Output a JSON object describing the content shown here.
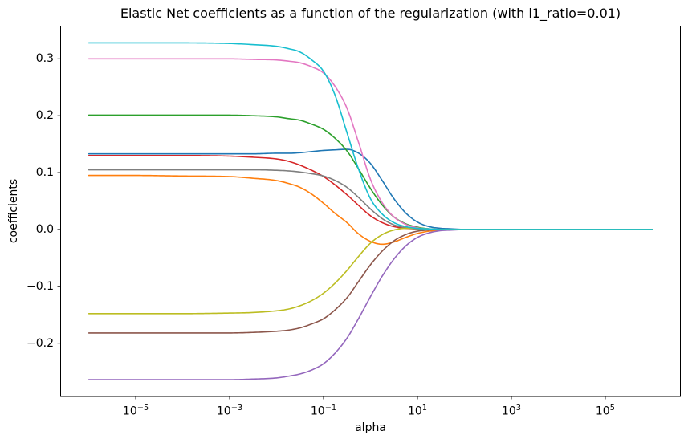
{
  "chart_data": {
    "type": "line",
    "title": "Elastic Net coefficients as a function of the regularization (with l1_ratio=0.01)",
    "xlabel": "alpha",
    "ylabel": "coefficients",
    "x_scale": "log10",
    "grid": false,
    "legend": "none",
    "xlim_log10": [
      -6.6,
      6.6
    ],
    "ylim": [
      -0.2936,
      0.3576
    ],
    "x_tick_exponents": [
      -5,
      -3,
      -1,
      1,
      3,
      5
    ],
    "y_ticks": [
      0.3,
      0.2,
      0.1,
      0.0,
      -0.1,
      -0.2
    ],
    "log10_alpha": [
      -6,
      -5,
      -4,
      -3,
      -2.5,
      -2,
      -1.75,
      -1.5,
      -1.25,
      -1,
      -0.75,
      -0.5,
      -0.25,
      0,
      0.25,
      0.5,
      0.75,
      1,
      1.25,
      1.5,
      1.75,
      2,
      3,
      4,
      5,
      6
    ],
    "series": [
      {
        "name": "blue",
        "color": "#1f77b4",
        "values": [
          0.133,
          0.133,
          0.133,
          0.133,
          0.133,
          0.134,
          0.134,
          0.135,
          0.137,
          0.139,
          0.14,
          0.141,
          0.134,
          0.116,
          0.086,
          0.054,
          0.029,
          0.013,
          0.005,
          0.002,
          0.001,
          0,
          0,
          0,
          0,
          0
        ]
      },
      {
        "name": "orange",
        "color": "#ff7f0e",
        "values": [
          0.095,
          0.095,
          0.094,
          0.093,
          0.09,
          0.086,
          0.081,
          0.074,
          0.062,
          0.046,
          0.028,
          0.012,
          -0.008,
          -0.021,
          -0.026,
          -0.022,
          -0.014,
          -0.007,
          -0.003,
          -0.001,
          0,
          0,
          0,
          0,
          0,
          0
        ]
      },
      {
        "name": "green",
        "color": "#2ca02c",
        "values": [
          0.201,
          0.201,
          0.201,
          0.201,
          0.2,
          0.198,
          0.195,
          0.192,
          0.185,
          0.176,
          0.16,
          0.138,
          0.106,
          0.072,
          0.043,
          0.022,
          0.01,
          0.004,
          0.001,
          0,
          0,
          0,
          0,
          0,
          0,
          0
        ]
      },
      {
        "name": "red",
        "color": "#d62728",
        "values": [
          0.13,
          0.13,
          0.13,
          0.129,
          0.127,
          0.124,
          0.12,
          0.113,
          0.104,
          0.093,
          0.078,
          0.061,
          0.042,
          0.024,
          0.012,
          0.005,
          0.002,
          0.001,
          0,
          0,
          0,
          0,
          0,
          0,
          0,
          0
        ]
      },
      {
        "name": "purple",
        "color": "#9467bd",
        "values": [
          -0.264,
          -0.264,
          -0.264,
          -0.264,
          -0.263,
          -0.261,
          -0.258,
          -0.254,
          -0.247,
          -0.236,
          -0.217,
          -0.191,
          -0.156,
          -0.118,
          -0.082,
          -0.052,
          -0.029,
          -0.014,
          -0.006,
          -0.002,
          -0.001,
          0,
          0,
          0,
          0,
          0
        ]
      },
      {
        "name": "brown",
        "color": "#8c564b",
        "values": [
          -0.182,
          -0.182,
          -0.182,
          -0.182,
          -0.181,
          -0.179,
          -0.177,
          -0.173,
          -0.166,
          -0.157,
          -0.141,
          -0.12,
          -0.091,
          -0.062,
          -0.038,
          -0.02,
          -0.009,
          -0.003,
          -0.001,
          0,
          0,
          0,
          0,
          0,
          0,
          0
        ]
      },
      {
        "name": "pink",
        "color": "#e377c2",
        "values": [
          0.3,
          0.3,
          0.3,
          0.3,
          0.299,
          0.298,
          0.296,
          0.293,
          0.286,
          0.275,
          0.251,
          0.213,
          0.152,
          0.088,
          0.047,
          0.022,
          0.009,
          0.003,
          0.001,
          0,
          0,
          0,
          0,
          0,
          0,
          0
        ]
      },
      {
        "name": "gray",
        "color": "#7f7f7f",
        "values": [
          0.105,
          0.105,
          0.105,
          0.105,
          0.105,
          0.104,
          0.103,
          0.101,
          0.098,
          0.094,
          0.086,
          0.074,
          0.056,
          0.036,
          0.019,
          0.008,
          0.003,
          0.001,
          0,
          0,
          0,
          0,
          0,
          0,
          0,
          0
        ]
      },
      {
        "name": "olive",
        "color": "#bcbd22",
        "values": [
          -0.148,
          -0.148,
          -0.148,
          -0.147,
          -0.146,
          -0.143,
          -0.14,
          -0.134,
          -0.125,
          -0.112,
          -0.094,
          -0.072,
          -0.047,
          -0.024,
          -0.009,
          -0.001,
          0.002,
          0.002,
          0.001,
          0,
          0,
          0,
          0,
          0,
          0,
          0
        ]
      },
      {
        "name": "cyan",
        "color": "#17becf",
        "values": [
          0.328,
          0.328,
          0.328,
          0.327,
          0.325,
          0.322,
          0.318,
          0.312,
          0.298,
          0.278,
          0.235,
          0.17,
          0.105,
          0.054,
          0.027,
          0.012,
          0.005,
          0.002,
          0.001,
          0,
          0,
          0,
          0,
          0,
          0,
          0
        ]
      }
    ]
  }
}
